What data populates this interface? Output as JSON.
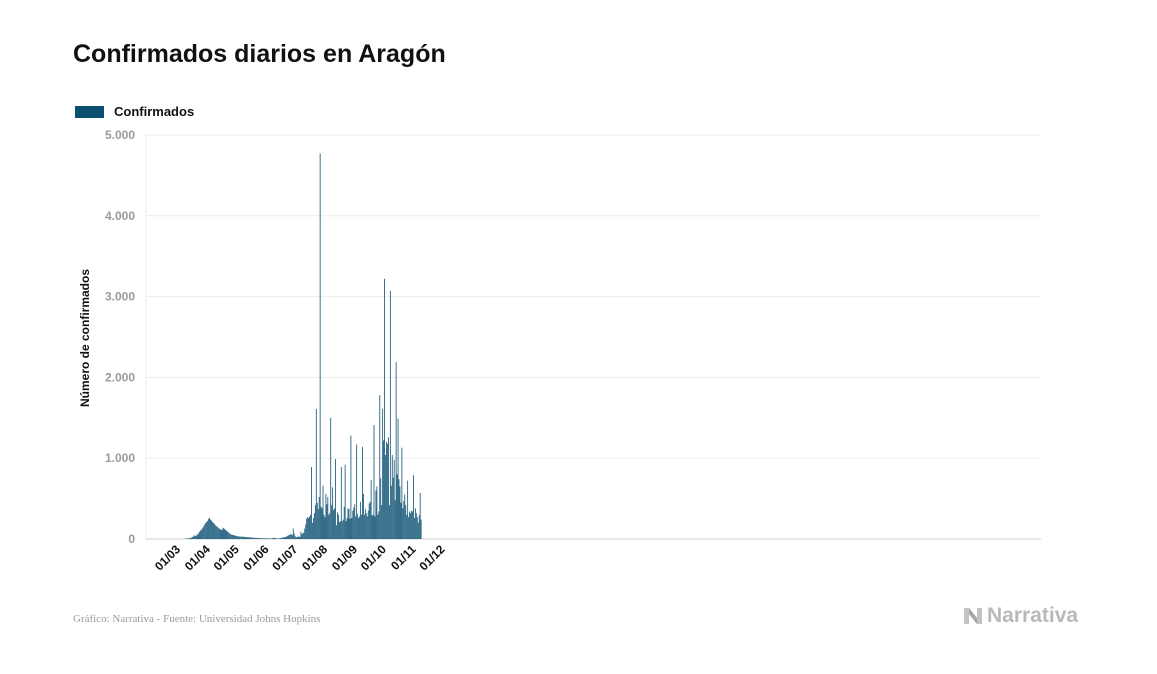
{
  "title": "Confirmados diarios en Aragón",
  "legend": {
    "label": "Confirmados",
    "color": "#0b4f71"
  },
  "source": "Gráfico: Narrativa - Fuente: Universidad Johns Hopkins",
  "brand": {
    "name": "Narrativa",
    "icon": "narrativa-logo-icon"
  },
  "chart_data": {
    "type": "bar",
    "title": "Confirmados diarios en Aragón",
    "xlabel": "",
    "ylabel": "Número de confirmados",
    "ylim": [
      0,
      5000
    ],
    "yticks": [
      0,
      1000,
      2000,
      3000,
      4000,
      5000
    ],
    "ytick_labels": [
      "0",
      "1.000",
      "2.000",
      "3.000",
      "4.000",
      "5.000"
    ],
    "xtick_labels": [
      "01/03",
      "01/04",
      "01/05",
      "01/06",
      "01/07",
      "01/08",
      "01/09",
      "01/10",
      "01/11",
      "01/12"
    ],
    "x_start": "2020-03-01",
    "x_end": "2020-12-07",
    "grid": true,
    "legend_position": "top-left",
    "series": [
      {
        "name": "Confirmados",
        "color": "#0b4f71",
        "values": [
          0,
          0,
          0,
          0,
          0,
          0,
          0,
          0,
          0,
          0,
          0,
          0,
          2,
          4,
          3,
          8,
          6,
          12,
          10,
          18,
          25,
          30,
          45,
          40,
          35,
          60,
          55,
          80,
          95,
          110,
          120,
          140,
          160,
          180,
          200,
          210,
          225,
          250,
          260,
          240,
          230,
          210,
          200,
          185,
          170,
          160,
          150,
          140,
          130,
          120,
          115,
          110,
          140,
          130,
          120,
          110,
          100,
          90,
          80,
          70,
          60,
          55,
          50,
          50,
          45,
          40,
          38,
          35,
          32,
          30,
          28,
          30,
          30,
          28,
          26,
          25,
          24,
          22,
          20,
          22,
          20,
          18,
          18,
          16,
          16,
          15,
          14,
          14,
          12,
          12,
          10,
          12,
          10,
          10,
          8,
          8,
          8,
          10,
          10,
          8,
          8,
          6,
          6,
          10,
          12,
          15,
          12,
          10,
          8,
          6,
          6,
          8,
          12,
          15,
          18,
          20,
          22,
          25,
          30,
          40,
          45,
          50,
          60,
          55,
          50,
          130,
          70,
          35,
          20,
          25,
          30,
          30,
          25,
          90,
          60,
          70,
          80,
          130,
          180,
          250,
          270,
          260,
          280,
          300,
          890,
          200,
          260,
          320,
          420,
          1610,
          450,
          370,
          520,
          4770,
          400,
          380,
          660,
          300,
          270,
          560,
          430,
          520,
          300,
          320,
          1500,
          420,
          640,
          360,
          380,
          990,
          170,
          330,
          300,
          210,
          220,
          890,
          220,
          240,
          400,
          920,
          220,
          260,
          380,
          370,
          250,
          1280,
          260,
          350,
          390,
          430,
          280,
          1170,
          310,
          260,
          280,
          460,
          300,
          1140,
          560,
          300,
          370,
          320,
          280,
          350,
          440,
          460,
          730,
          290,
          300,
          1410,
          280,
          600,
          650,
          300,
          340,
          1780,
          750,
          420,
          1610,
          1220,
          3220,
          1040,
          1200,
          1180,
          1260,
          420,
          3070,
          660,
          1040,
          760,
          980,
          480,
          2190,
          800,
          1490,
          740,
          650,
          450,
          1130,
          380,
          470,
          550,
          420,
          300,
          720,
          270,
          340,
          320,
          350,
          340,
          790,
          260,
          380,
          320,
          270,
          200,
          300,
          570,
          240
        ]
      }
    ]
  }
}
